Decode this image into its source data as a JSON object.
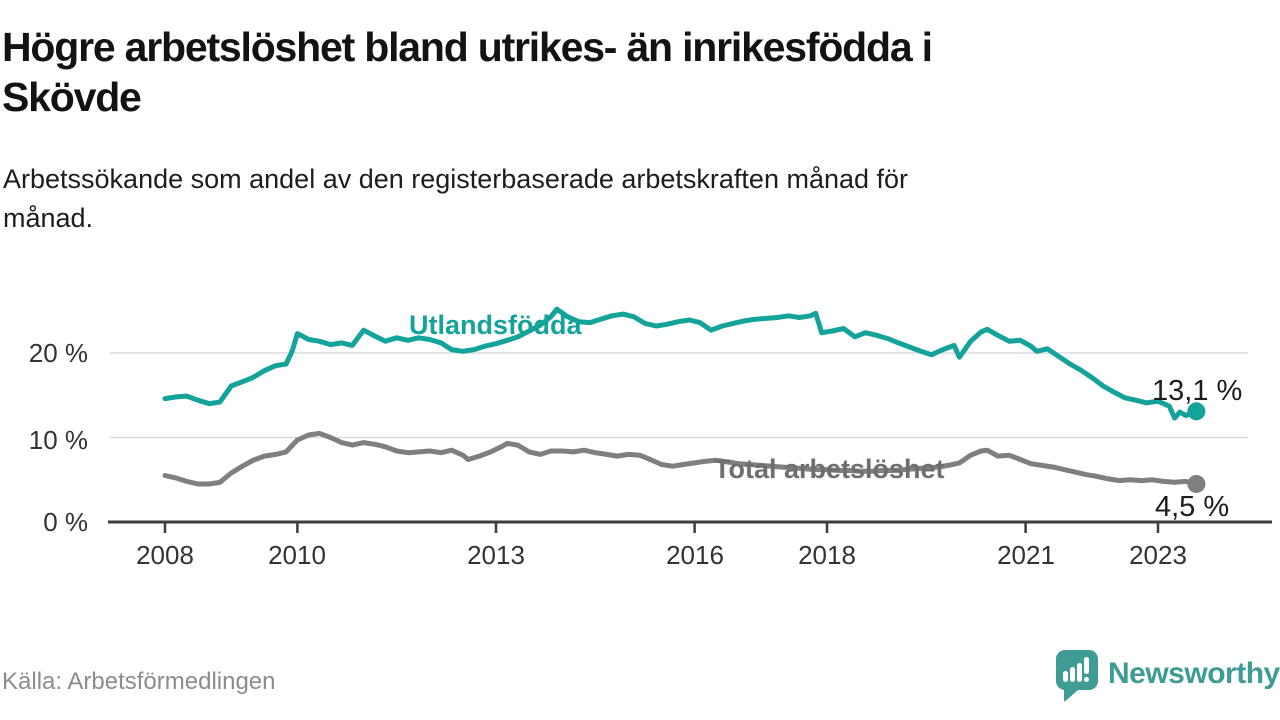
{
  "title": {
    "line1": "Högre arbetslöshet bland utrikes- än inrikesfödda i",
    "line2": "Skövde",
    "full": "Högre arbetslöshet bland utrikes- än inrikesfödda i Skövde"
  },
  "subtitle": {
    "line1": "Arbetssökande som andel av den registerbaserade arbetskraften månad för",
    "line2": "månad.",
    "full": "Arbetssökande som andel av den registerbaserade arbetskraften månad för månad."
  },
  "source": "Källa: Arbetsförmedlingen",
  "logo": {
    "text": "Newsworthy",
    "icon": "speech-bubble-bar-chart",
    "color": "#3e9c95"
  },
  "colors": {
    "foreign_born_line": "#13a39a",
    "total_line": "#7f7f7f",
    "total_label": "#6e6e6e",
    "axis": "#3d3d3d",
    "gridline": "#dcdcdc",
    "tick_text": "#333333",
    "end_label_text": "#1d1d1d",
    "background": "#ffffff"
  },
  "chart_data": {
    "type": "line",
    "title": "Högre arbetslöshet bland utrikes- än inrikesfödda i Skövde",
    "subtitle": "Arbetssökande som andel av den registerbaserade arbetskraften månad för månad.",
    "xlabel": "",
    "ylabel": "",
    "unit": "%",
    "xlim": [
      2007.15,
      2024.7
    ],
    "ylim": [
      0,
      26.3
    ],
    "grid": "horizontal",
    "legend_position": "inline-labels",
    "y_ticks": [
      {
        "value": 0,
        "label": "0 %"
      },
      {
        "value": 10,
        "label": "10 %"
      },
      {
        "value": 20,
        "label": "20 %"
      }
    ],
    "x_ticks": [
      {
        "value": 2008,
        "label": "2008"
      },
      {
        "value": 2010,
        "label": "2010"
      },
      {
        "value": 2013,
        "label": "2013"
      },
      {
        "value": 2016,
        "label": "2016"
      },
      {
        "value": 2018,
        "label": "2018"
      },
      {
        "value": 2021,
        "label": "2021"
      },
      {
        "value": 2023,
        "label": "2023"
      }
    ],
    "series": [
      {
        "name": "Utlandsfödda",
        "color": "#13a39a",
        "end_label": "13,1 %",
        "end_value": 13.1,
        "points": [
          [
            2008.0,
            14.6
          ],
          [
            2008.17,
            14.8
          ],
          [
            2008.33,
            14.9
          ],
          [
            2008.5,
            14.4
          ],
          [
            2008.67,
            14.0
          ],
          [
            2008.83,
            14.2
          ],
          [
            2009.0,
            16.1
          ],
          [
            2009.17,
            16.6
          ],
          [
            2009.33,
            17.1
          ],
          [
            2009.5,
            17.9
          ],
          [
            2009.67,
            18.5
          ],
          [
            2009.83,
            18.7
          ],
          [
            2009.92,
            20.2
          ],
          [
            2010.0,
            22.3
          ],
          [
            2010.17,
            21.6
          ],
          [
            2010.33,
            21.4
          ],
          [
            2010.5,
            21.0
          ],
          [
            2010.67,
            21.2
          ],
          [
            2010.83,
            20.9
          ],
          [
            2011.0,
            22.7
          ],
          [
            2011.17,
            22.0
          ],
          [
            2011.33,
            21.4
          ],
          [
            2011.5,
            21.8
          ],
          [
            2011.67,
            21.5
          ],
          [
            2011.83,
            21.8
          ],
          [
            2012.0,
            21.6
          ],
          [
            2012.17,
            21.2
          ],
          [
            2012.33,
            20.4
          ],
          [
            2012.5,
            20.2
          ],
          [
            2012.67,
            20.4
          ],
          [
            2012.83,
            20.8
          ],
          [
            2013.0,
            21.1
          ],
          [
            2013.17,
            21.5
          ],
          [
            2013.33,
            21.9
          ],
          [
            2013.5,
            22.6
          ],
          [
            2013.67,
            23.3
          ],
          [
            2013.83,
            24.3
          ],
          [
            2013.92,
            25.2
          ],
          [
            2014.08,
            24.3
          ],
          [
            2014.25,
            23.7
          ],
          [
            2014.42,
            23.6
          ],
          [
            2014.58,
            24.0
          ],
          [
            2014.75,
            24.4
          ],
          [
            2014.92,
            24.6
          ],
          [
            2015.08,
            24.3
          ],
          [
            2015.25,
            23.5
          ],
          [
            2015.42,
            23.2
          ],
          [
            2015.58,
            23.4
          ],
          [
            2015.75,
            23.7
          ],
          [
            2015.92,
            23.9
          ],
          [
            2016.08,
            23.6
          ],
          [
            2016.25,
            22.7
          ],
          [
            2016.42,
            23.2
          ],
          [
            2016.58,
            23.5
          ],
          [
            2016.75,
            23.8
          ],
          [
            2016.92,
            24.0
          ],
          [
            2017.08,
            24.1
          ],
          [
            2017.25,
            24.2
          ],
          [
            2017.42,
            24.4
          ],
          [
            2017.58,
            24.2
          ],
          [
            2017.75,
            24.4
          ],
          [
            2017.83,
            24.7
          ],
          [
            2017.92,
            22.4
          ],
          [
            2018.08,
            22.6
          ],
          [
            2018.25,
            22.9
          ],
          [
            2018.42,
            21.9
          ],
          [
            2018.58,
            22.4
          ],
          [
            2018.75,
            22.1
          ],
          [
            2018.92,
            21.7
          ],
          [
            2019.08,
            21.2
          ],
          [
            2019.25,
            20.7
          ],
          [
            2019.42,
            20.2
          ],
          [
            2019.58,
            19.8
          ],
          [
            2019.75,
            20.4
          ],
          [
            2019.92,
            20.9
          ],
          [
            2020.0,
            19.5
          ],
          [
            2020.17,
            21.4
          ],
          [
            2020.33,
            22.5
          ],
          [
            2020.42,
            22.8
          ],
          [
            2020.58,
            22.1
          ],
          [
            2020.75,
            21.4
          ],
          [
            2020.92,
            21.5
          ],
          [
            2021.08,
            20.8
          ],
          [
            2021.17,
            20.2
          ],
          [
            2021.33,
            20.5
          ],
          [
            2021.5,
            19.6
          ],
          [
            2021.67,
            18.7
          ],
          [
            2021.83,
            18.0
          ],
          [
            2022.0,
            17.1
          ],
          [
            2022.17,
            16.1
          ],
          [
            2022.33,
            15.4
          ],
          [
            2022.5,
            14.7
          ],
          [
            2022.67,
            14.4
          ],
          [
            2022.83,
            14.1
          ],
          [
            2023.0,
            14.3
          ],
          [
            2023.17,
            13.7
          ],
          [
            2023.25,
            12.3
          ],
          [
            2023.33,
            13.0
          ],
          [
            2023.42,
            12.6
          ],
          [
            2023.58,
            13.1
          ]
        ]
      },
      {
        "name": "Total arbetslöshet",
        "color": "#7f7f7f",
        "end_label": "4,5 %",
        "end_value": 4.5,
        "points": [
          [
            2008.0,
            5.5
          ],
          [
            2008.17,
            5.2
          ],
          [
            2008.33,
            4.8
          ],
          [
            2008.5,
            4.5
          ],
          [
            2008.67,
            4.5
          ],
          [
            2008.83,
            4.7
          ],
          [
            2009.0,
            5.8
          ],
          [
            2009.17,
            6.6
          ],
          [
            2009.33,
            7.3
          ],
          [
            2009.5,
            7.8
          ],
          [
            2009.67,
            8.0
          ],
          [
            2009.83,
            8.3
          ],
          [
            2010.0,
            9.7
          ],
          [
            2010.17,
            10.3
          ],
          [
            2010.33,
            10.5
          ],
          [
            2010.5,
            10.0
          ],
          [
            2010.67,
            9.4
          ],
          [
            2010.83,
            9.1
          ],
          [
            2011.0,
            9.4
          ],
          [
            2011.17,
            9.2
          ],
          [
            2011.33,
            8.9
          ],
          [
            2011.5,
            8.4
          ],
          [
            2011.67,
            8.2
          ],
          [
            2011.83,
            8.3
          ],
          [
            2012.0,
            8.4
          ],
          [
            2012.17,
            8.2
          ],
          [
            2012.33,
            8.5
          ],
          [
            2012.5,
            7.9
          ],
          [
            2012.58,
            7.4
          ],
          [
            2012.75,
            7.8
          ],
          [
            2012.92,
            8.3
          ],
          [
            2013.08,
            8.9
          ],
          [
            2013.17,
            9.3
          ],
          [
            2013.33,
            9.1
          ],
          [
            2013.5,
            8.3
          ],
          [
            2013.67,
            8.0
          ],
          [
            2013.83,
            8.4
          ],
          [
            2014.0,
            8.4
          ],
          [
            2014.17,
            8.3
          ],
          [
            2014.33,
            8.5
          ],
          [
            2014.5,
            8.2
          ],
          [
            2014.67,
            8.0
          ],
          [
            2014.83,
            7.8
          ],
          [
            2015.0,
            8.0
          ],
          [
            2015.17,
            7.9
          ],
          [
            2015.33,
            7.4
          ],
          [
            2015.5,
            6.8
          ],
          [
            2015.67,
            6.6
          ],
          [
            2015.83,
            6.8
          ],
          [
            2016.0,
            7.0
          ],
          [
            2016.17,
            7.2
          ],
          [
            2016.33,
            7.3
          ],
          [
            2016.5,
            7.1
          ],
          [
            2016.67,
            6.9
          ],
          [
            2016.83,
            6.8
          ],
          [
            2017.0,
            6.7
          ],
          [
            2017.17,
            6.6
          ],
          [
            2017.33,
            6.5
          ],
          [
            2017.5,
            6.4
          ],
          [
            2017.67,
            6.3
          ],
          [
            2017.83,
            6.2
          ],
          [
            2018.0,
            6.2
          ],
          [
            2018.17,
            6.1
          ],
          [
            2018.33,
            6.1
          ],
          [
            2018.5,
            6.0
          ],
          [
            2018.67,
            6.0
          ],
          [
            2018.83,
            6.1
          ],
          [
            2019.0,
            6.1
          ],
          [
            2019.17,
            6.2
          ],
          [
            2019.33,
            6.3
          ],
          [
            2019.5,
            6.4
          ],
          [
            2019.67,
            6.5
          ],
          [
            2019.83,
            6.7
          ],
          [
            2020.0,
            7.0
          ],
          [
            2020.17,
            7.9
          ],
          [
            2020.33,
            8.4
          ],
          [
            2020.42,
            8.5
          ],
          [
            2020.58,
            7.8
          ],
          [
            2020.75,
            7.9
          ],
          [
            2020.92,
            7.4
          ],
          [
            2021.08,
            6.9
          ],
          [
            2021.25,
            6.7
          ],
          [
            2021.42,
            6.5
          ],
          [
            2021.58,
            6.2
          ],
          [
            2021.75,
            5.9
          ],
          [
            2021.92,
            5.6
          ],
          [
            2022.08,
            5.4
          ],
          [
            2022.25,
            5.1
          ],
          [
            2022.42,
            4.9
          ],
          [
            2022.58,
            5.0
          ],
          [
            2022.75,
            4.9
          ],
          [
            2022.92,
            5.0
          ],
          [
            2023.08,
            4.8
          ],
          [
            2023.25,
            4.7
          ],
          [
            2023.42,
            4.8
          ],
          [
            2023.58,
            4.5
          ]
        ]
      }
    ]
  }
}
